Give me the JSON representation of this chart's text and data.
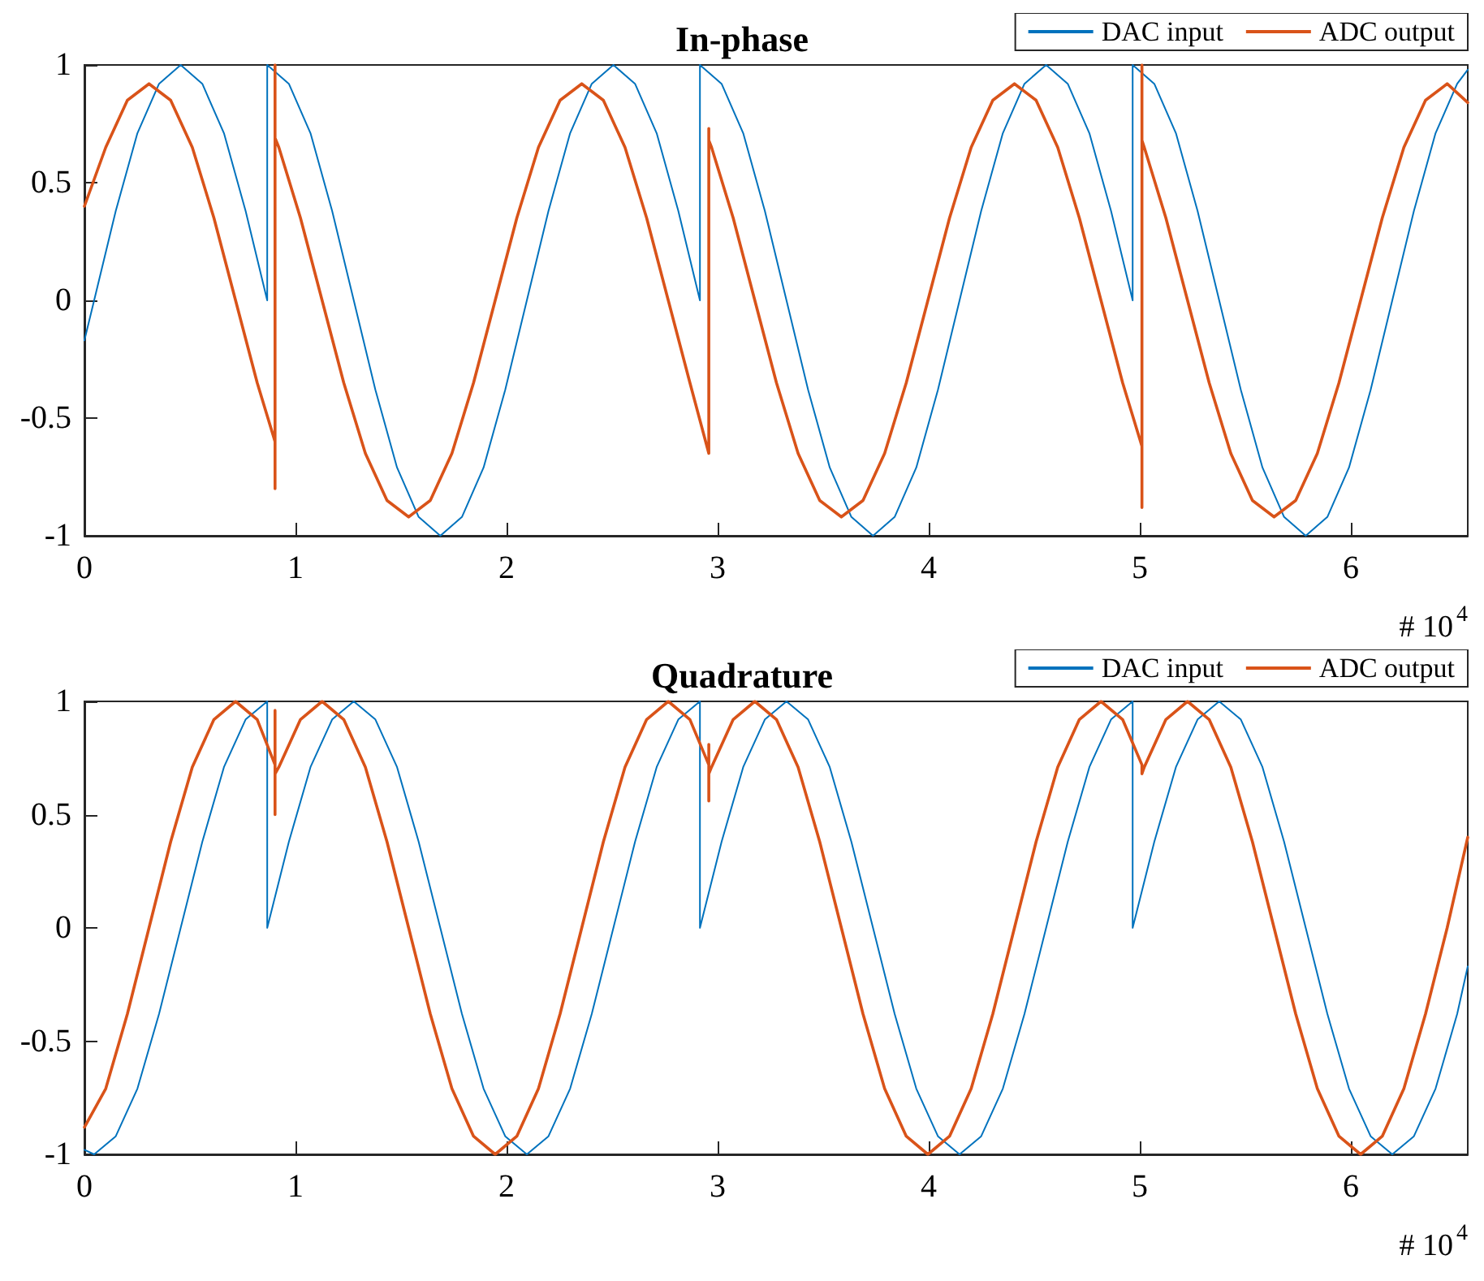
{
  "chart_data": [
    {
      "type": "line",
      "title": "In-phase",
      "xlim": [
        0,
        6.5536
      ],
      "xticks": [
        0,
        1,
        2,
        3,
        4,
        5,
        6
      ],
      "ylim": [
        -1,
        1
      ],
      "yticks": [
        -1,
        -0.5,
        0,
        0.5,
        1
      ],
      "legend": "top right",
      "marker": "none",
      "line_style": "solid",
      "annotations": [
        "# 10$^{4}$"
      ],
      "series": [
        {
          "name": "DAC input",
          "color": "#0072bd",
          "x": [
            0,
            0.046,
            0.1485,
            0.251,
            0.3535,
            0.456,
            0.5585,
            0.661,
            0.7635,
            0.866,
            0.866,
            0.9685,
            1.071,
            1.1735,
            1.276,
            1.3785,
            1.481,
            1.5835,
            1.686,
            1.7885,
            1.891,
            1.9935,
            2.096,
            2.1985,
            2.301,
            2.4035,
            2.506,
            2.6085,
            2.711,
            2.8135,
            2.916,
            2.916,
            3.0185,
            3.121,
            3.2235,
            3.326,
            3.4285,
            3.531,
            3.6335,
            3.736,
            3.8385,
            3.941,
            4.0435,
            4.146,
            4.2485,
            4.351,
            4.4535,
            4.556,
            4.6585,
            4.761,
            4.8635,
            4.966,
            4.966,
            5.0685,
            5.171,
            5.2735,
            5.376,
            5.4785,
            5.581,
            5.6835,
            5.786,
            5.8885,
            5.991,
            6.0935,
            6.196,
            6.2985,
            6.401,
            6.5035,
            6.5536
          ],
          "values": [
            -0.17,
            0,
            0.38,
            0.71,
            0.92,
            1,
            0.92,
            0.71,
            0.38,
            0,
            1,
            0.92,
            0.71,
            0.38,
            0,
            -0.38,
            -0.71,
            -0.92,
            -1,
            -0.92,
            -0.71,
            -0.38,
            0,
            0.38,
            0.71,
            0.92,
            1,
            0.92,
            0.71,
            0.38,
            0,
            1,
            0.92,
            0.71,
            0.38,
            0,
            -0.38,
            -0.71,
            -0.92,
            -1,
            -0.92,
            -0.71,
            -0.38,
            0,
            0.38,
            0.71,
            0.92,
            1,
            0.92,
            0.71,
            0.38,
            0,
            1,
            0.92,
            0.71,
            0.38,
            0,
            -0.38,
            -0.71,
            -0.92,
            -1,
            -0.92,
            -0.71,
            -0.38,
            0,
            0.38,
            0.71,
            0.92,
            0.98
          ]
        },
        {
          "name": "ADC output",
          "color": "#d95319",
          "x": [
            0,
            0.101,
            0.2035,
            0.306,
            0.4085,
            0.511,
            0.6135,
            0.716,
            0.8185,
            0.903,
            0.903,
            0.903,
            0.903,
            0.921,
            1.0235,
            1.126,
            1.2285,
            1.331,
            1.4335,
            1.536,
            1.6385,
            1.741,
            1.8435,
            1.946,
            2.0485,
            2.151,
            2.2535,
            2.356,
            2.4585,
            2.561,
            2.6635,
            2.766,
            2.8685,
            2.958,
            2.958,
            2.958,
            2.971,
            3.0735,
            3.176,
            3.2785,
            3.381,
            3.4835,
            3.586,
            3.6885,
            3.791,
            3.8935,
            3.996,
            4.0985,
            4.201,
            4.3035,
            4.406,
            4.5085,
            4.611,
            4.7135,
            4.816,
            4.9185,
            5.01,
            5.01,
            5.01,
            5.01,
            5.021,
            5.1235,
            5.226,
            5.3285,
            5.431,
            5.5335,
            5.636,
            5.7385,
            5.841,
            5.9435,
            6.046,
            6.1485,
            6.251,
            6.3535,
            6.456,
            6.5536
          ],
          "values": [
            0.4,
            0.65,
            0.85,
            0.92,
            0.85,
            0.65,
            0.35,
            0,
            -0.35,
            -0.6,
            -0.8,
            1,
            0.69,
            0.65,
            0.35,
            0,
            -0.35,
            -0.65,
            -0.85,
            -0.92,
            -0.85,
            -0.65,
            -0.35,
            0,
            0.35,
            0.65,
            0.85,
            0.92,
            0.85,
            0.65,
            0.35,
            0,
            -0.35,
            -0.65,
            0.73,
            0.68,
            0.65,
            0.35,
            0,
            -0.35,
            -0.65,
            -0.85,
            -0.92,
            -0.85,
            -0.65,
            -0.35,
            0,
            0.35,
            0.65,
            0.85,
            0.92,
            0.85,
            0.65,
            0.35,
            0,
            -0.35,
            -0.62,
            -0.88,
            1,
            0.68,
            0.65,
            0.35,
            0,
            -0.35,
            -0.65,
            -0.85,
            -0.92,
            -0.85,
            -0.65,
            -0.35,
            0,
            0.35,
            0.65,
            0.85,
            0.92,
            0.84
          ]
        }
      ]
    },
    {
      "type": "line",
      "title": "Quadrature",
      "xlim": [
        0,
        6.5536
      ],
      "xticks": [
        0,
        1,
        2,
        3,
        4,
        5,
        6
      ],
      "ylim": [
        -1,
        1
      ],
      "yticks": [
        -1,
        -0.5,
        0,
        0.5,
        1
      ],
      "legend": "top right",
      "marker": "none",
      "line_style": "solid",
      "annotations": [
        "# 10$^{4}$"
      ],
      "series": [
        {
          "name": "DAC input",
          "color": "#0072bd",
          "x": [
            0,
            0.046,
            0.1485,
            0.251,
            0.3535,
            0.456,
            0.5585,
            0.661,
            0.7635,
            0.866,
            0.866,
            0.9685,
            1.071,
            1.1735,
            1.276,
            1.3785,
            1.481,
            1.5835,
            1.686,
            1.7885,
            1.891,
            1.9935,
            2.096,
            2.1985,
            2.301,
            2.4035,
            2.506,
            2.6085,
            2.711,
            2.8135,
            2.916,
            2.916,
            3.0185,
            3.121,
            3.2235,
            3.326,
            3.4285,
            3.531,
            3.6335,
            3.736,
            3.8385,
            3.941,
            4.0435,
            4.146,
            4.2485,
            4.351,
            4.4535,
            4.556,
            4.6585,
            4.761,
            4.8635,
            4.966,
            4.966,
            5.0685,
            5.171,
            5.2735,
            5.376,
            5.4785,
            5.581,
            5.6835,
            5.786,
            5.8885,
            5.991,
            6.0935,
            6.196,
            6.2985,
            6.401,
            6.5035,
            6.5536
          ],
          "values": [
            -0.98,
            -1,
            -0.92,
            -0.71,
            -0.38,
            0,
            0.38,
            0.71,
            0.92,
            1,
            0,
            0.38,
            0.71,
            0.92,
            1,
            0.92,
            0.71,
            0.38,
            0,
            -0.38,
            -0.71,
            -0.92,
            -1,
            -0.92,
            -0.71,
            -0.38,
            0,
            0.38,
            0.71,
            0.92,
            1,
            0,
            0.38,
            0.71,
            0.92,
            1,
            0.92,
            0.71,
            0.38,
            0,
            -0.38,
            -0.71,
            -0.92,
            -1,
            -0.92,
            -0.71,
            -0.38,
            0,
            0.38,
            0.71,
            0.92,
            1,
            0,
            0.38,
            0.71,
            0.92,
            1,
            0.92,
            0.71,
            0.38,
            0,
            -0.38,
            -0.71,
            -0.92,
            -1,
            -0.92,
            -0.71,
            -0.38,
            -0.17
          ]
        },
        {
          "name": "ADC output",
          "color": "#d95319",
          "x": [
            0,
            0.101,
            0.2035,
            0.306,
            0.4085,
            0.511,
            0.6135,
            0.716,
            0.8185,
            0.903,
            0.903,
            0.903,
            0.903,
            0.921,
            1.0235,
            1.126,
            1.2285,
            1.331,
            1.4335,
            1.536,
            1.6385,
            1.741,
            1.8435,
            1.946,
            2.0485,
            2.151,
            2.2535,
            2.356,
            2.4585,
            2.561,
            2.6635,
            2.766,
            2.8685,
            2.958,
            2.958,
            2.958,
            2.958,
            2.971,
            3.0735,
            3.176,
            3.2785,
            3.381,
            3.4835,
            3.586,
            3.6885,
            3.791,
            3.8935,
            3.996,
            4.0985,
            4.201,
            4.3035,
            4.406,
            4.5085,
            4.611,
            4.7135,
            4.816,
            4.9185,
            5.01,
            5.01,
            5.021,
            5.1235,
            5.226,
            5.3285,
            5.431,
            5.5335,
            5.636,
            5.7385,
            5.841,
            5.9435,
            6.046,
            6.1485,
            6.251,
            6.3535,
            6.456,
            6.5536
          ],
          "values": [
            -0.88,
            -0.71,
            -0.38,
            0,
            0.38,
            0.71,
            0.92,
            1,
            0.92,
            0.72,
            0.96,
            0.5,
            0.68,
            0.71,
            0.92,
            1,
            0.92,
            0.71,
            0.38,
            0,
            -0.38,
            -0.71,
            -0.92,
            -1,
            -0.92,
            -0.71,
            -0.38,
            0,
            0.38,
            0.71,
            0.92,
            1,
            0.92,
            0.72,
            0.81,
            0.56,
            0.68,
            0.71,
            0.92,
            1,
            0.92,
            0.71,
            0.38,
            0,
            -0.38,
            -0.71,
            -0.92,
            -1,
            -0.92,
            -0.71,
            -0.38,
            0,
            0.38,
            0.71,
            0.92,
            1,
            0.92,
            0.72,
            0.68,
            0.71,
            0.92,
            1,
            0.92,
            0.71,
            0.38,
            0,
            -0.38,
            -0.71,
            -0.92,
            -1,
            -0.92,
            -0.71,
            -0.38,
            0,
            0.4
          ]
        }
      ]
    }
  ]
}
